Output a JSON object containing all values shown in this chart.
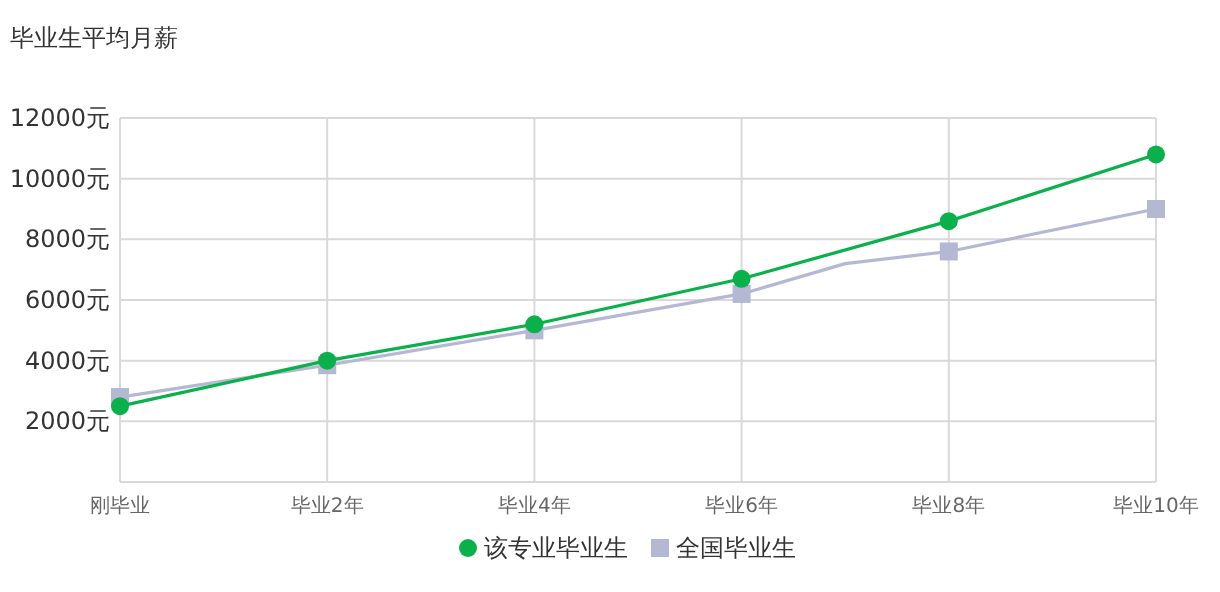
{
  "chart_data": {
    "type": "line",
    "title": "毕业生平均月薪",
    "categories": [
      "刚毕业",
      null,
      "毕业2年",
      null,
      "毕业4年",
      null,
      "毕业6年",
      null,
      "毕业8年",
      null,
      "毕业10年"
    ],
    "ylim": [
      0,
      12000
    ],
    "yticks": [
      {
        "value": 0,
        "label": null
      },
      {
        "value": 2000,
        "label": "2000元"
      },
      {
        "value": 4000,
        "label": "4000元"
      },
      {
        "value": 6000,
        "label": "6000元"
      },
      {
        "value": 8000,
        "label": "8000元"
      },
      {
        "value": 10000,
        "label": "10000元"
      },
      {
        "value": 12000,
        "label": "12000元"
      }
    ],
    "grid": true,
    "legend": "bottom",
    "line_style": "solid",
    "series": [
      {
        "name": "该专业毕业生",
        "color": "#0ab14a",
        "marker": "circle",
        "values": [
          2500,
          null,
          4000,
          null,
          5200,
          null,
          6700,
          null,
          8600,
          null,
          10800
        ]
      },
      {
        "name": "全国毕业生",
        "color": "#b4b8d2",
        "marker": "square",
        "values": [
          2800,
          null,
          3850,
          null,
          5000,
          null,
          6200,
          7200,
          7600,
          null,
          9000
        ]
      }
    ]
  }
}
